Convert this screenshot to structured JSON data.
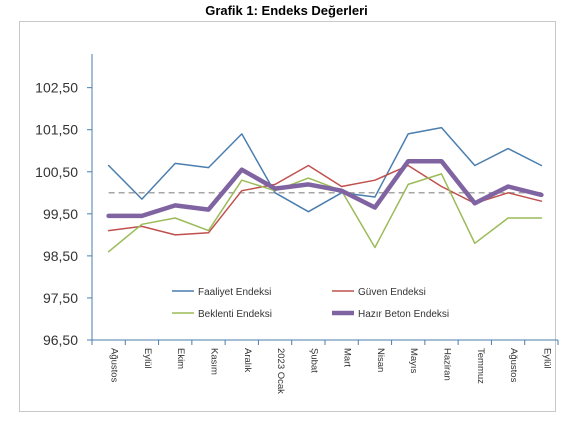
{
  "chart_data": {
    "type": "line",
    "title": "Grafik 1: Endeks Değerleri",
    "categories": [
      "Ağustos",
      "Eylül",
      "Ekim",
      "Kasım",
      "Aralık",
      "2023 Ocak",
      "Şubat",
      "Mart",
      "Nisan",
      "Mayıs",
      "Haziran",
      "Temmuz",
      "Ağustos",
      "Eylül"
    ],
    "ylim": [
      96.5,
      103.3
    ],
    "yticks": [
      "96,50",
      "97,50",
      "98,50",
      "99,50",
      "100,50",
      "101,50",
      "102,50"
    ],
    "ytick_values": [
      96.5,
      97.5,
      98.5,
      99.5,
      100.5,
      101.5,
      102.5
    ],
    "reference_line": 100,
    "series": [
      {
        "name": "Faaliyet Endeksi",
        "color": "#4a7eae",
        "values": [
          100.65,
          99.85,
          100.7,
          100.6,
          101.4,
          100.0,
          99.55,
          100.0,
          99.9,
          101.4,
          101.55,
          100.65,
          101.05,
          100.65
        ]
      },
      {
        "name": "Güven Endeksi",
        "color": "#c0504d",
        "values": [
          99.1,
          99.2,
          99.0,
          99.05,
          100.05,
          100.2,
          100.65,
          100.15,
          100.3,
          100.65,
          100.15,
          99.75,
          100.0,
          99.8
        ]
      },
      {
        "name": "Beklenti Endeksi",
        "color": "#9bbb59",
        "values": [
          98.6,
          99.25,
          99.4,
          99.1,
          100.3,
          100.05,
          100.35,
          100.05,
          98.7,
          100.2,
          100.45,
          98.8,
          99.4,
          99.4
        ]
      },
      {
        "name": "Hazır Beton Endeksi",
        "color": "#8064a2",
        "values": [
          99.45,
          99.45,
          99.7,
          99.6,
          100.55,
          100.1,
          100.2,
          100.05,
          99.65,
          100.75,
          100.75,
          99.75,
          100.15,
          99.95
        ]
      }
    ],
    "legend": "inside-bottom",
    "grid": false
  }
}
